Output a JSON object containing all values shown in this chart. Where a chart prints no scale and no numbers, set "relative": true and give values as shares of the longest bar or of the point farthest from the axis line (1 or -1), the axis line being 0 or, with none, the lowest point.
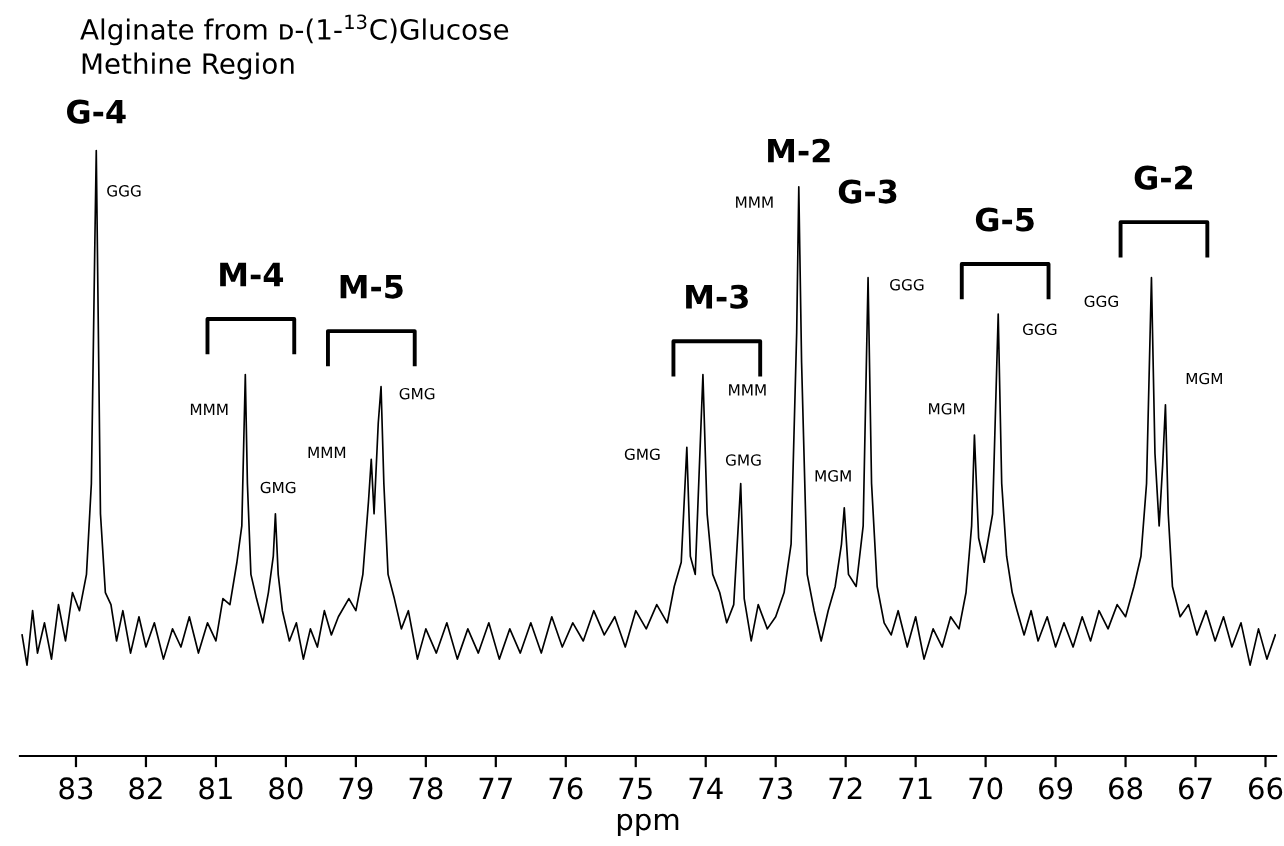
{
  "chart_data": {
    "type": "line",
    "relative": true,
    "title": "Alginate from ᴅ-(1-$^{13}$C)Glucose",
    "subtitle": "Methine Region",
    "xlabel": "ppm",
    "xlim": [
      83.8,
      65.85
    ],
    "xticks": [
      83,
      82,
      81,
      80,
      79,
      78,
      77,
      76,
      75,
      74,
      73,
      72,
      71,
      70,
      69,
      68,
      67,
      66
    ],
    "grid": false,
    "legend": false,
    "marker": "none",
    "line_style": "solid",
    "series": [
      {
        "color": "#000000",
        "x": [
          83.77,
          83.7,
          83.62,
          83.55,
          83.45,
          83.35,
          83.25,
          83.15,
          83.05,
          82.95,
          82.85,
          82.78,
          82.73,
          82.71,
          82.69,
          82.65,
          82.58,
          82.5,
          82.42,
          82.33,
          82.22,
          82.1,
          82.0,
          81.88,
          81.75,
          81.62,
          81.5,
          81.38,
          81.25,
          81.12,
          81.0,
          80.9,
          80.8,
          80.7,
          80.63,
          80.58,
          80.55,
          80.5,
          80.42,
          80.33,
          80.25,
          80.18,
          80.15,
          80.11,
          80.05,
          79.95,
          79.85,
          79.75,
          79.65,
          79.55,
          79.45,
          79.35,
          79.25,
          79.1,
          79.0,
          78.9,
          78.82,
          78.78,
          78.74,
          78.68,
          78.64,
          78.6,
          78.54,
          78.45,
          78.35,
          78.25,
          78.12,
          78.0,
          77.85,
          77.7,
          77.55,
          77.4,
          77.25,
          77.1,
          76.95,
          76.8,
          76.65,
          76.5,
          76.35,
          76.2,
          76.05,
          75.9,
          75.75,
          75.6,
          75.45,
          75.3,
          75.15,
          75.0,
          74.85,
          74.7,
          74.55,
          74.45,
          74.35,
          74.27,
          74.22,
          74.15,
          74.04,
          73.98,
          73.9,
          73.8,
          73.7,
          73.6,
          73.5,
          73.45,
          73.35,
          73.25,
          73.12,
          73.0,
          72.88,
          72.78,
          72.7,
          72.67,
          72.63,
          72.55,
          72.45,
          72.35,
          72.25,
          72.15,
          72.06,
          72.02,
          71.96,
          71.85,
          71.75,
          71.68,
          71.63,
          71.55,
          71.45,
          71.35,
          71.25,
          71.12,
          71.0,
          70.88,
          70.75,
          70.62,
          70.5,
          70.38,
          70.28,
          70.2,
          70.16,
          70.1,
          70.02,
          69.9,
          69.82,
          69.77,
          69.7,
          69.62,
          69.55,
          69.45,
          69.35,
          69.25,
          69.12,
          69.0,
          68.88,
          68.75,
          68.62,
          68.5,
          68.38,
          68.25,
          68.12,
          68.0,
          67.88,
          67.78,
          67.7,
          67.63,
          67.58,
          67.52,
          67.47,
          67.43,
          67.39,
          67.33,
          67.22,
          67.1,
          66.98,
          66.85,
          66.72,
          66.6,
          66.48,
          66.35,
          66.22,
          66.1,
          65.98,
          65.86
        ],
        "values": [
          0.2,
          0.15,
          0.24,
          0.17,
          0.22,
          0.16,
          0.25,
          0.19,
          0.27,
          0.24,
          0.3,
          0.45,
          0.85,
          1.0,
          0.8,
          0.4,
          0.27,
          0.25,
          0.19,
          0.24,
          0.17,
          0.23,
          0.18,
          0.22,
          0.16,
          0.21,
          0.18,
          0.23,
          0.17,
          0.22,
          0.19,
          0.26,
          0.25,
          0.32,
          0.38,
          0.63,
          0.45,
          0.3,
          0.26,
          0.22,
          0.27,
          0.33,
          0.4,
          0.3,
          0.24,
          0.19,
          0.22,
          0.16,
          0.21,
          0.18,
          0.24,
          0.2,
          0.23,
          0.26,
          0.24,
          0.3,
          0.42,
          0.49,
          0.4,
          0.55,
          0.61,
          0.45,
          0.3,
          0.26,
          0.21,
          0.24,
          0.16,
          0.21,
          0.17,
          0.22,
          0.16,
          0.21,
          0.17,
          0.22,
          0.16,
          0.21,
          0.17,
          0.22,
          0.17,
          0.23,
          0.18,
          0.22,
          0.19,
          0.24,
          0.2,
          0.23,
          0.18,
          0.24,
          0.21,
          0.25,
          0.22,
          0.28,
          0.32,
          0.51,
          0.33,
          0.3,
          0.63,
          0.4,
          0.3,
          0.27,
          0.22,
          0.25,
          0.45,
          0.26,
          0.19,
          0.25,
          0.21,
          0.23,
          0.27,
          0.35,
          0.7,
          0.94,
          0.65,
          0.3,
          0.24,
          0.19,
          0.24,
          0.28,
          0.35,
          0.41,
          0.3,
          0.28,
          0.38,
          0.79,
          0.45,
          0.28,
          0.22,
          0.2,
          0.24,
          0.18,
          0.23,
          0.16,
          0.21,
          0.18,
          0.23,
          0.21,
          0.27,
          0.38,
          0.53,
          0.36,
          0.32,
          0.4,
          0.73,
          0.45,
          0.33,
          0.27,
          0.24,
          0.2,
          0.24,
          0.19,
          0.23,
          0.18,
          0.22,
          0.18,
          0.23,
          0.19,
          0.24,
          0.21,
          0.25,
          0.23,
          0.28,
          0.33,
          0.45,
          0.79,
          0.5,
          0.38,
          0.48,
          0.58,
          0.4,
          0.28,
          0.23,
          0.25,
          0.2,
          0.24,
          0.19,
          0.23,
          0.18,
          0.22,
          0.15,
          0.21,
          0.16,
          0.2
        ]
      }
    ],
    "annotations": [
      {
        "text": "G-4",
        "x": 82.71,
        "y": 1.0
      },
      {
        "text": "M-4",
        "x": 80.58,
        "y": 0.63
      },
      {
        "text": "M-5",
        "x": 78.64,
        "y": 0.61
      },
      {
        "text": "M-3",
        "x": 74.04,
        "y": 0.63
      },
      {
        "text": "M-2",
        "x": 72.67,
        "y": 0.94
      },
      {
        "text": "G-3",
        "x": 71.68,
        "y": 0.79
      },
      {
        "text": "G-5",
        "x": 69.82,
        "y": 0.73
      },
      {
        "text": "G-2",
        "x": 67.63,
        "y": 0.79
      },
      {
        "text": "GGG",
        "x": 82.71,
        "y": 1.0
      },
      {
        "text": "MMM",
        "x": 80.58,
        "y": 0.63
      },
      {
        "text": "GMG",
        "x": 80.15,
        "y": 0.4
      },
      {
        "text": "MMM",
        "x": 78.78,
        "y": 0.49
      },
      {
        "text": "GMG",
        "x": 78.64,
        "y": 0.61
      },
      {
        "text": "GMG",
        "x": 74.27,
        "y": 0.51
      },
      {
        "text": "MMM",
        "x": 74.04,
        "y": 0.63
      },
      {
        "text": "GMG",
        "x": 73.5,
        "y": 0.45
      },
      {
        "text": "MMM",
        "x": 72.67,
        "y": 0.94
      },
      {
        "text": "MGM",
        "x": 72.02,
        "y": 0.41
      },
      {
        "text": "GGG",
        "x": 71.68,
        "y": 0.79
      },
      {
        "text": "MGM",
        "x": 70.16,
        "y": 0.53
      },
      {
        "text": "GGG",
        "x": 69.82,
        "y": 0.73
      },
      {
        "text": "GGG",
        "x": 67.63,
        "y": 0.79
      },
      {
        "text": "MGM",
        "x": 67.43,
        "y": 0.58
      }
    ]
  }
}
